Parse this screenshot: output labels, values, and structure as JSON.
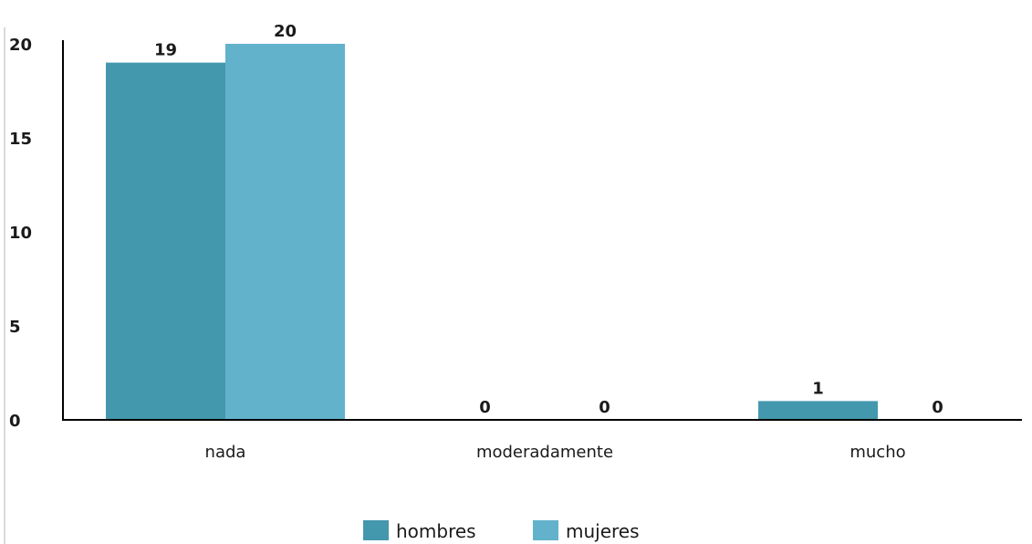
{
  "chart_data": {
    "type": "bar",
    "title": "",
    "xlabel": "",
    "ylabel": "",
    "categories": [
      "nada",
      "moderadamente",
      "mucho"
    ],
    "series": [
      {
        "name": "hombres",
        "values": [
          19,
          0,
          1
        ],
        "color": "#4498ad"
      },
      {
        "name": "mujeres",
        "values": [
          20,
          0,
          0
        ],
        "color": "#62b2cb"
      }
    ],
    "ylim": [
      0,
      20
    ],
    "yticks": [
      0,
      5,
      10,
      15,
      20
    ],
    "grid": false,
    "legend": "bottom-center",
    "data_labels": true
  }
}
